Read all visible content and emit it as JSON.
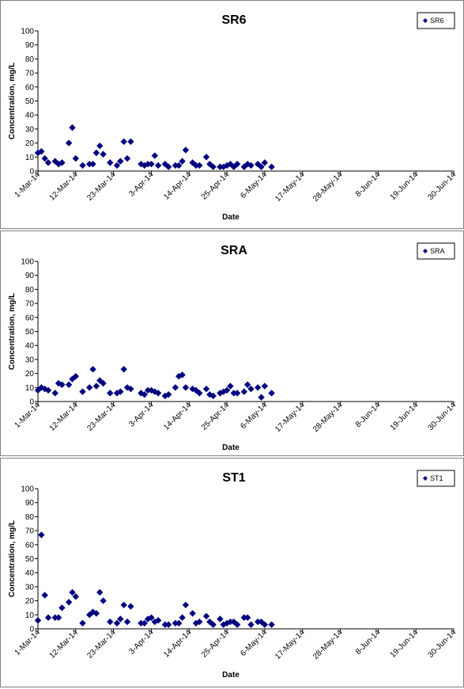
{
  "chart_data": [
    {
      "type": "scatter",
      "title": "SR6",
      "xlabel": "Date",
      "ylabel": "Concentration, mg/L",
      "ylim": [
        0,
        100
      ],
      "yticks": [
        0,
        10,
        20,
        30,
        40,
        50,
        60,
        70,
        80,
        90,
        100
      ],
      "xticks": [
        "1-Mar-14",
        "12-Mar-14",
        "23-Mar-14",
        "3-Apr-14",
        "14-Apr-14",
        "25-Apr-14",
        "6-May-14",
        "17-May-14",
        "28-May-14",
        "8-Jun-14",
        "19-Jun-14",
        "30-Jun-14"
      ],
      "grid": false,
      "legend": "top-right",
      "series": [
        {
          "name": "SR6",
          "color": "#000080",
          "points": [
            [
              "2014-03-01",
              13
            ],
            [
              "2014-03-02",
              14
            ],
            [
              "2014-03-03",
              9
            ],
            [
              "2014-03-04",
              6
            ],
            [
              "2014-03-06",
              7
            ],
            [
              "2014-03-07",
              5
            ],
            [
              "2014-03-08",
              6
            ],
            [
              "2014-03-10",
              20
            ],
            [
              "2014-03-11",
              31
            ],
            [
              "2014-03-12",
              9
            ],
            [
              "2014-03-14",
              4
            ],
            [
              "2014-03-16",
              5
            ],
            [
              "2014-03-17",
              5
            ],
            [
              "2014-03-18",
              13
            ],
            [
              "2014-03-19",
              18
            ],
            [
              "2014-03-20",
              12
            ],
            [
              "2014-03-22",
              6
            ],
            [
              "2014-03-24",
              4
            ],
            [
              "2014-03-25",
              7
            ],
            [
              "2014-03-26",
              21
            ],
            [
              "2014-03-27",
              9
            ],
            [
              "2014-03-28",
              21
            ],
            [
              "2014-03-31",
              5
            ],
            [
              "2014-04-01",
              4
            ],
            [
              "2014-04-02",
              5
            ],
            [
              "2014-04-03",
              5
            ],
            [
              "2014-04-04",
              11
            ],
            [
              "2014-04-05",
              4
            ],
            [
              "2014-04-07",
              5
            ],
            [
              "2014-04-08",
              3
            ],
            [
              "2014-04-10",
              4
            ],
            [
              "2014-04-11",
              4
            ],
            [
              "2014-04-12",
              7
            ],
            [
              "2014-04-13",
              15
            ],
            [
              "2014-04-15",
              6
            ],
            [
              "2014-04-16",
              4
            ],
            [
              "2014-04-17",
              4
            ],
            [
              "2014-04-19",
              10
            ],
            [
              "2014-04-20",
              5
            ],
            [
              "2014-04-21",
              3
            ],
            [
              "2014-04-23",
              3
            ],
            [
              "2014-04-24",
              3
            ],
            [
              "2014-04-25",
              4
            ],
            [
              "2014-04-26",
              5
            ],
            [
              "2014-04-27",
              3
            ],
            [
              "2014-04-28",
              5
            ],
            [
              "2014-04-30",
              3
            ],
            [
              "2014-05-01",
              5
            ],
            [
              "2014-05-02",
              4
            ],
            [
              "2014-05-04",
              5
            ],
            [
              "2014-05-05",
              3
            ],
            [
              "2014-05-06",
              6
            ],
            [
              "2014-05-08",
              3
            ]
          ]
        }
      ]
    },
    {
      "type": "scatter",
      "title": "SRA",
      "xlabel": "Date",
      "ylabel": "Concentration, mg/L",
      "ylim": [
        0,
        100
      ],
      "yticks": [
        0,
        10,
        20,
        30,
        40,
        50,
        60,
        70,
        80,
        90,
        100
      ],
      "xticks": [
        "1-Mar-14",
        "12-Mar-14",
        "23-Mar-14",
        "3-Apr-14",
        "14-Apr-14",
        "25-Apr-14",
        "6-May-14",
        "17-May-14",
        "28-May-14",
        "8-Jun-14",
        "19-Jun-14",
        "30-Jun-14"
      ],
      "grid": false,
      "legend": "top-right",
      "series": [
        {
          "name": "SRA",
          "color": "#000080",
          "points": [
            [
              "2014-03-01",
              8
            ],
            [
              "2014-03-02",
              10
            ],
            [
              "2014-03-03",
              9
            ],
            [
              "2014-03-04",
              8
            ],
            [
              "2014-03-06",
              6
            ],
            [
              "2014-03-07",
              13
            ],
            [
              "2014-03-08",
              12
            ],
            [
              "2014-03-10",
              12
            ],
            [
              "2014-03-11",
              16
            ],
            [
              "2014-03-12",
              18
            ],
            [
              "2014-03-14",
              7
            ],
            [
              "2014-03-16",
              10
            ],
            [
              "2014-03-17",
              23
            ],
            [
              "2014-03-18",
              11
            ],
            [
              "2014-03-19",
              15
            ],
            [
              "2014-03-20",
              13
            ],
            [
              "2014-03-22",
              6
            ],
            [
              "2014-03-24",
              6
            ],
            [
              "2014-03-25",
              7
            ],
            [
              "2014-03-26",
              23
            ],
            [
              "2014-03-27",
              10
            ],
            [
              "2014-03-28",
              9
            ],
            [
              "2014-03-31",
              6
            ],
            [
              "2014-04-01",
              5
            ],
            [
              "2014-04-02",
              8
            ],
            [
              "2014-04-03",
              8
            ],
            [
              "2014-04-04",
              7
            ],
            [
              "2014-04-05",
              6
            ],
            [
              "2014-04-07",
              4
            ],
            [
              "2014-04-08",
              5
            ],
            [
              "2014-04-10",
              10
            ],
            [
              "2014-04-11",
              18
            ],
            [
              "2014-04-12",
              19
            ],
            [
              "2014-04-13",
              10
            ],
            [
              "2014-04-15",
              9
            ],
            [
              "2014-04-16",
              8
            ],
            [
              "2014-04-17",
              6
            ],
            [
              "2014-04-19",
              9
            ],
            [
              "2014-04-20",
              5
            ],
            [
              "2014-04-21",
              4
            ],
            [
              "2014-04-23",
              6
            ],
            [
              "2014-04-24",
              7
            ],
            [
              "2014-04-25",
              8
            ],
            [
              "2014-04-26",
              11
            ],
            [
              "2014-04-27",
              6
            ],
            [
              "2014-04-28",
              6
            ],
            [
              "2014-04-30",
              7
            ],
            [
              "2014-05-01",
              12
            ],
            [
              "2014-05-02",
              9
            ],
            [
              "2014-05-04",
              10
            ],
            [
              "2014-05-05",
              3
            ],
            [
              "2014-05-06",
              11
            ],
            [
              "2014-05-08",
              6
            ]
          ]
        }
      ]
    },
    {
      "type": "scatter",
      "title": "ST1",
      "xlabel": "Date",
      "ylabel": "Concentration, mg/L",
      "ylim": [
        0,
        100
      ],
      "yticks": [
        0,
        10,
        20,
        30,
        40,
        50,
        60,
        70,
        80,
        90,
        100
      ],
      "xticks": [
        "1-Mar-14",
        "12-Mar-14",
        "23-Mar-14",
        "3-Apr-14",
        "14-Apr-14",
        "25-Apr-14",
        "6-May-14",
        "17-May-14",
        "28-May-14",
        "8-Jun-14",
        "19-Jun-14",
        "30-Jun-14"
      ],
      "grid": false,
      "legend": "top-right",
      "series": [
        {
          "name": "ST1",
          "color": "#000080",
          "points": [
            [
              "2014-03-01",
              6
            ],
            [
              "2014-03-02",
              67
            ],
            [
              "2014-03-03",
              24
            ],
            [
              "2014-03-04",
              8
            ],
            [
              "2014-03-06",
              8
            ],
            [
              "2014-03-07",
              8
            ],
            [
              "2014-03-08",
              15
            ],
            [
              "2014-03-10",
              19
            ],
            [
              "2014-03-11",
              26
            ],
            [
              "2014-03-12",
              23
            ],
            [
              "2014-03-14",
              4
            ],
            [
              "2014-03-16",
              10
            ],
            [
              "2014-03-17",
              12
            ],
            [
              "2014-03-18",
              11
            ],
            [
              "2014-03-19",
              26
            ],
            [
              "2014-03-20",
              20
            ],
            [
              "2014-03-22",
              5
            ],
            [
              "2014-03-24",
              4
            ],
            [
              "2014-03-25",
              7
            ],
            [
              "2014-03-26",
              17
            ],
            [
              "2014-03-27",
              5
            ],
            [
              "2014-03-28",
              16
            ],
            [
              "2014-03-31",
              4
            ],
            [
              "2014-04-01",
              4
            ],
            [
              "2014-04-02",
              7
            ],
            [
              "2014-04-03",
              8
            ],
            [
              "2014-04-04",
              5
            ],
            [
              "2014-04-05",
              6
            ],
            [
              "2014-04-07",
              3
            ],
            [
              "2014-04-08",
              3
            ],
            [
              "2014-04-10",
              4
            ],
            [
              "2014-04-11",
              4
            ],
            [
              "2014-04-12",
              8
            ],
            [
              "2014-04-13",
              17
            ],
            [
              "2014-04-15",
              11
            ],
            [
              "2014-04-16",
              4
            ],
            [
              "2014-04-17",
              5
            ],
            [
              "2014-04-19",
              9
            ],
            [
              "2014-04-20",
              5
            ],
            [
              "2014-04-21",
              3
            ],
            [
              "2014-04-23",
              7
            ],
            [
              "2014-04-24",
              3
            ],
            [
              "2014-04-25",
              4
            ],
            [
              "2014-04-26",
              5
            ],
            [
              "2014-04-27",
              5
            ],
            [
              "2014-04-28",
              3
            ],
            [
              "2014-04-30",
              8
            ],
            [
              "2014-05-01",
              8
            ],
            [
              "2014-05-02",
              3
            ],
            [
              "2014-05-04",
              5
            ],
            [
              "2014-05-05",
              5
            ],
            [
              "2014-05-06",
              3
            ],
            [
              "2014-05-08",
              3
            ]
          ]
        }
      ]
    }
  ]
}
